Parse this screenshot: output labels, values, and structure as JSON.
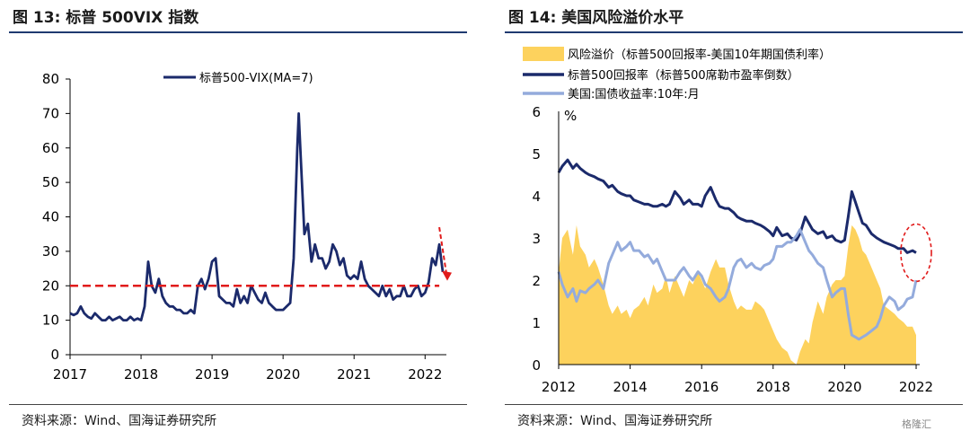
{
  "left": {
    "title": "图 13:  标普 500VIX 指数",
    "source": "资料来源：Wind、国海证券研究所"
  },
  "right": {
    "title": "图 14:  美国风险溢价水平",
    "source": "资料来源：Wind、国海证券研究所"
  },
  "watermark": "格隆汇",
  "colors": {
    "navy": "#1b2a6b",
    "red": "#e11b1b",
    "gold": "#fdd25d",
    "lightblue": "#94abdc",
    "title_rule": "#1f3a70"
  },
  "chart_data": [
    {
      "type": "line",
      "title": "",
      "xlabel": "",
      "ylabel": "",
      "xlim": [
        2017.0,
        2022.3
      ],
      "ylim": [
        0,
        80
      ],
      "x_ticks": [
        2017,
        2018,
        2019,
        2020,
        2021,
        2022
      ],
      "y_ticks": [
        0,
        10,
        20,
        30,
        40,
        50,
        60,
        70,
        80
      ],
      "legend": {
        "position": "top-center",
        "entries": [
          "标普500-VIX(MA=7)"
        ]
      },
      "grid": false,
      "series": [
        {
          "name": "标普500-VIX(MA=7)",
          "color": "#1b2a6b",
          "x": [
            2017.0,
            2017.05,
            2017.1,
            2017.15,
            2017.2,
            2017.25,
            2017.3,
            2017.35,
            2017.4,
            2017.45,
            2017.5,
            2017.55,
            2017.6,
            2017.65,
            2017.7,
            2017.75,
            2017.8,
            2017.85,
            2017.9,
            2017.95,
            2018.0,
            2018.05,
            2018.1,
            2018.15,
            2018.2,
            2018.25,
            2018.3,
            2018.35,
            2018.4,
            2018.45,
            2018.5,
            2018.55,
            2018.6,
            2018.65,
            2018.7,
            2018.75,
            2018.8,
            2018.85,
            2018.9,
            2018.95,
            2019.0,
            2019.05,
            2019.1,
            2019.15,
            2019.2,
            2019.25,
            2019.3,
            2019.35,
            2019.4,
            2019.45,
            2019.5,
            2019.55,
            2019.6,
            2019.65,
            2019.7,
            2019.75,
            2019.8,
            2019.85,
            2019.9,
            2019.95,
            2020.0,
            2020.05,
            2020.1,
            2020.15,
            2020.2,
            2020.22,
            2020.25,
            2020.3,
            2020.35,
            2020.4,
            2020.45,
            2020.5,
            2020.55,
            2020.6,
            2020.65,
            2020.7,
            2020.75,
            2020.8,
            2020.85,
            2020.9,
            2020.95,
            2021.0,
            2021.05,
            2021.1,
            2021.15,
            2021.2,
            2021.25,
            2021.3,
            2021.35,
            2021.4,
            2021.45,
            2021.5,
            2021.55,
            2021.6,
            2021.65,
            2021.7,
            2021.75,
            2021.8,
            2021.85,
            2021.9,
            2021.95,
            2022.0,
            2022.05,
            2022.1,
            2022.15,
            2022.2,
            2022.25
          ],
          "y": [
            12,
            11.5,
            12,
            14,
            12,
            11,
            10.5,
            12,
            11,
            10,
            10,
            11,
            10,
            10.5,
            11,
            10,
            10,
            11,
            10,
            10.5,
            10,
            14,
            27,
            20,
            18,
            22,
            17,
            15,
            14,
            14,
            13,
            13,
            12,
            12,
            13,
            12,
            20,
            22,
            19,
            22,
            27,
            28,
            17,
            16,
            15,
            15,
            14,
            19,
            15,
            17,
            15,
            20,
            18,
            16,
            15,
            18,
            15,
            14,
            13,
            13,
            13,
            14,
            15,
            28,
            60,
            70,
            57,
            35,
            38,
            27,
            32,
            28,
            28,
            25,
            27,
            32,
            30,
            26,
            28,
            23,
            22,
            23,
            22,
            27,
            22,
            20,
            19,
            18,
            17,
            20,
            17,
            19,
            16,
            17,
            17,
            20,
            17,
            17,
            19,
            20,
            17,
            18,
            21,
            28,
            26,
            32,
            24
          ],
          "line_width": 2.8
        },
        {
          "name": "",
          "color": "#e11b1b",
          "style": "dashed",
          "x": [
            2017.0,
            2022.2
          ],
          "y": [
            20,
            20
          ]
        }
      ],
      "annotations": [
        {
          "type": "arrow",
          "style": "dashed",
          "color": "#e11b1b",
          "from": [
            2022.2,
            37
          ],
          "to": [
            2022.3,
            22
          ],
          "label": ""
        }
      ]
    },
    {
      "type": "area",
      "title": "",
      "xlabel": "",
      "ylabel": "%",
      "xlim": [
        2012,
        2022.1
      ],
      "ylim": [
        0,
        6
      ],
      "x_ticks": [
        2012,
        2014,
        2016,
        2018,
        2020,
        2022
      ],
      "y_ticks": [
        0,
        1,
        2,
        3,
        4,
        5,
        6
      ],
      "grid": false,
      "legend": {
        "position": "top-left",
        "entries": [
          "风险溢价（标普500回报率-美国10年期国债利率）",
          "标普500回报率（标普500席勒市盈率倒数）",
          "美国:国债收益率:10年:月"
        ]
      },
      "series": [
        {
          "name": "风险溢价（标普500回报率-美国10年期国债利率）",
          "type": "area",
          "color": "#fdd25d",
          "x": [
            2012.0,
            2012.1,
            2012.25,
            2012.4,
            2012.5,
            2012.6,
            2012.75,
            2012.85,
            2013.0,
            2013.1,
            2013.25,
            2013.4,
            2013.5,
            2013.65,
            2013.75,
            2013.9,
            2014.0,
            2014.1,
            2014.25,
            2014.4,
            2014.5,
            2014.65,
            2014.75,
            2014.9,
            2015.0,
            2015.1,
            2015.25,
            2015.4,
            2015.5,
            2015.65,
            2015.75,
            2015.9,
            2016.0,
            2016.1,
            2016.25,
            2016.4,
            2016.5,
            2016.65,
            2016.75,
            2016.9,
            2017.0,
            2017.1,
            2017.25,
            2017.4,
            2017.5,
            2017.65,
            2017.75,
            2017.9,
            2018.0,
            2018.1,
            2018.25,
            2018.4,
            2018.5,
            2018.65,
            2018.75,
            2018.9,
            2019.0,
            2019.1,
            2019.25,
            2019.4,
            2019.5,
            2019.65,
            2019.75,
            2019.9,
            2020.0,
            2020.1,
            2020.2,
            2020.3,
            2020.4,
            2020.5,
            2020.6,
            2020.75,
            2020.9,
            2021.0,
            2021.1,
            2021.25,
            2021.4,
            2021.5,
            2021.65,
            2021.75,
            2021.9,
            2022.0
          ],
          "y": [
            2.2,
            3.0,
            3.2,
            2.6,
            3.3,
            2.8,
            2.6,
            2.3,
            2.5,
            2.3,
            1.9,
            1.4,
            1.2,
            1.4,
            1.2,
            1.3,
            1.1,
            1.3,
            1.4,
            1.6,
            1.4,
            1.9,
            1.7,
            1.8,
            2.1,
            1.7,
            2.1,
            1.8,
            1.6,
            2.0,
            1.9,
            2.2,
            2.0,
            1.8,
            2.2,
            2.5,
            2.3,
            2.3,
            1.9,
            1.5,
            1.3,
            1.4,
            1.3,
            1.3,
            1.5,
            1.4,
            1.3,
            1.0,
            0.8,
            0.6,
            0.4,
            0.3,
            0.1,
            0.0,
            0.3,
            0.6,
            0.5,
            1.0,
            1.5,
            1.2,
            1.6,
            1.9,
            2.0,
            2.0,
            2.1,
            2.8,
            3.3,
            3.2,
            3.0,
            2.7,
            2.6,
            2.3,
            2.0,
            1.8,
            1.4,
            1.3,
            1.2,
            1.1,
            1.0,
            0.9,
            0.9,
            0.7
          ]
        },
        {
          "name": "标普500回报率（标普500席勒市盈率倒数）",
          "type": "line",
          "color": "#1b2a6b",
          "x": [
            2012.0,
            2012.1,
            2012.25,
            2012.4,
            2012.5,
            2012.6,
            2012.75,
            2012.85,
            2013.0,
            2013.1,
            2013.25,
            2013.4,
            2013.5,
            2013.65,
            2013.75,
            2013.9,
            2014.0,
            2014.1,
            2014.25,
            2014.4,
            2014.5,
            2014.65,
            2014.75,
            2014.9,
            2015.0,
            2015.1,
            2015.25,
            2015.4,
            2015.5,
            2015.65,
            2015.75,
            2015.9,
            2016.0,
            2016.1,
            2016.25,
            2016.4,
            2016.5,
            2016.65,
            2016.75,
            2016.9,
            2017.0,
            2017.1,
            2017.25,
            2017.4,
            2017.5,
            2017.65,
            2017.75,
            2017.9,
            2018.0,
            2018.1,
            2018.25,
            2018.4,
            2018.5,
            2018.65,
            2018.75,
            2018.9,
            2019.0,
            2019.1,
            2019.25,
            2019.4,
            2019.5,
            2019.65,
            2019.75,
            2019.9,
            2020.0,
            2020.1,
            2020.2,
            2020.3,
            2020.4,
            2020.5,
            2020.6,
            2020.75,
            2020.9,
            2021.0,
            2021.1,
            2021.25,
            2021.4,
            2021.5,
            2021.65,
            2021.75,
            2021.9,
            2022.0
          ],
          "y": [
            4.55,
            4.7,
            4.85,
            4.65,
            4.75,
            4.65,
            4.55,
            4.5,
            4.45,
            4.4,
            4.35,
            4.2,
            4.25,
            4.1,
            4.05,
            4.0,
            4.0,
            3.9,
            3.85,
            3.8,
            3.8,
            3.75,
            3.75,
            3.8,
            3.75,
            3.8,
            4.1,
            3.95,
            3.8,
            3.9,
            3.8,
            3.8,
            3.75,
            4.0,
            4.2,
            3.9,
            3.75,
            3.7,
            3.7,
            3.6,
            3.5,
            3.45,
            3.4,
            3.4,
            3.35,
            3.3,
            3.25,
            3.15,
            3.05,
            3.25,
            3.05,
            3.1,
            3.0,
            2.95,
            3.1,
            3.5,
            3.35,
            3.2,
            3.1,
            3.15,
            3.0,
            3.05,
            2.95,
            2.9,
            2.95,
            3.5,
            4.1,
            3.85,
            3.6,
            3.35,
            3.3,
            3.1,
            3.0,
            2.95,
            2.9,
            2.85,
            2.8,
            2.75,
            2.75,
            2.65,
            2.7,
            2.65
          ],
          "line_width": 3
        },
        {
          "name": "美国:国债收益率:10年:月",
          "type": "line",
          "color": "#94abdc",
          "x": [
            2012.0,
            2012.1,
            2012.25,
            2012.4,
            2012.5,
            2012.6,
            2012.75,
            2012.85,
            2013.0,
            2013.1,
            2013.25,
            2013.4,
            2013.5,
            2013.65,
            2013.75,
            2013.9,
            2014.0,
            2014.1,
            2014.25,
            2014.4,
            2014.5,
            2014.65,
            2014.75,
            2014.9,
            2015.0,
            2015.1,
            2015.25,
            2015.4,
            2015.5,
            2015.65,
            2015.75,
            2015.9,
            2016.0,
            2016.1,
            2016.25,
            2016.4,
            2016.5,
            2016.65,
            2016.75,
            2016.9,
            2017.0,
            2017.1,
            2017.25,
            2017.4,
            2017.5,
            2017.65,
            2017.75,
            2017.9,
            2018.0,
            2018.1,
            2018.25,
            2018.4,
            2018.5,
            2018.65,
            2018.75,
            2018.9,
            2019.0,
            2019.1,
            2019.25,
            2019.4,
            2019.5,
            2019.65,
            2019.75,
            2019.9,
            2020.0,
            2020.1,
            2020.2,
            2020.3,
            2020.4,
            2020.5,
            2020.6,
            2020.75,
            2020.9,
            2021.0,
            2021.1,
            2021.25,
            2021.4,
            2021.5,
            2021.65,
            2021.75,
            2021.9,
            2022.0
          ],
          "y": [
            2.2,
            1.9,
            1.6,
            1.8,
            1.5,
            1.75,
            1.7,
            1.8,
            1.9,
            2.0,
            1.8,
            2.4,
            2.6,
            2.9,
            2.7,
            2.8,
            2.9,
            2.7,
            2.7,
            2.55,
            2.6,
            2.4,
            2.5,
            2.2,
            2.0,
            2.0,
            2.0,
            2.2,
            2.3,
            2.1,
            2.0,
            2.2,
            2.1,
            1.9,
            1.8,
            1.6,
            1.5,
            1.6,
            1.8,
            2.3,
            2.45,
            2.5,
            2.3,
            2.4,
            2.3,
            2.25,
            2.35,
            2.4,
            2.5,
            2.8,
            2.8,
            2.9,
            2.9,
            3.05,
            3.2,
            2.9,
            2.7,
            2.6,
            2.4,
            2.3,
            2.0,
            1.6,
            1.7,
            1.8,
            1.8,
            1.2,
            0.7,
            0.65,
            0.6,
            0.65,
            0.7,
            0.8,
            0.9,
            1.1,
            1.4,
            1.6,
            1.5,
            1.3,
            1.4,
            1.55,
            1.6,
            2.0
          ],
          "line_width": 3
        }
      ],
      "annotations": [
        {
          "type": "ellipse",
          "style": "dashed",
          "color": "#e11b1b",
          "center": [
            2021.95,
            2.65
          ],
          "label": ""
        }
      ]
    }
  ]
}
